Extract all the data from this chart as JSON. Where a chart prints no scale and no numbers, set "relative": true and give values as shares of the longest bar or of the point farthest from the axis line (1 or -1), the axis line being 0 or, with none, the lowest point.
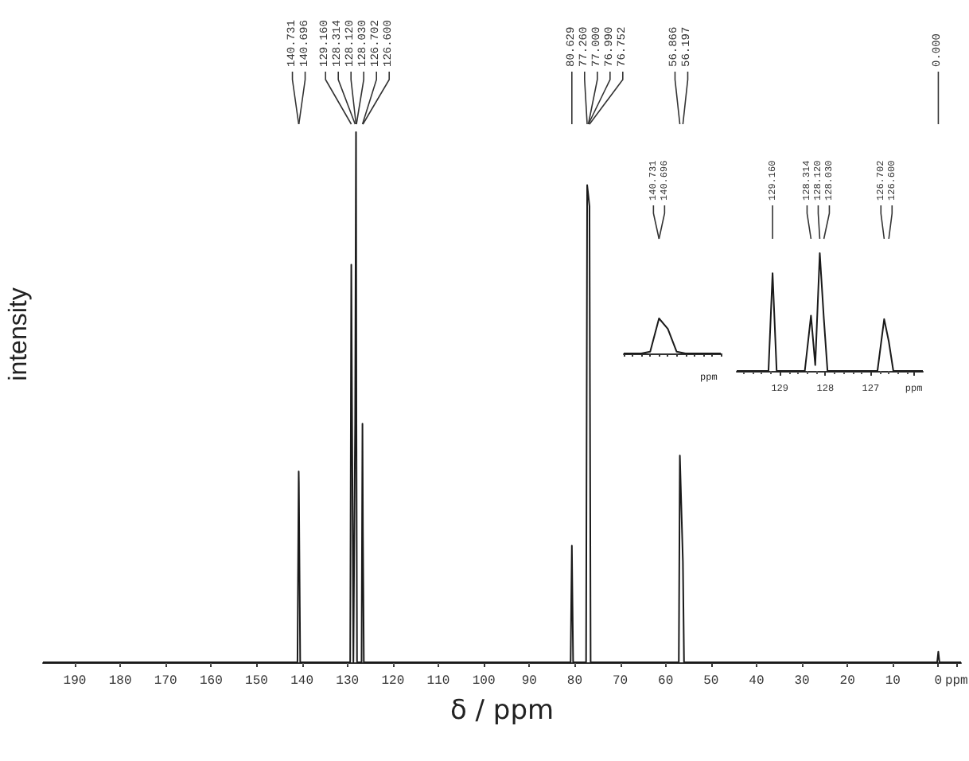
{
  "chart_data": [
    {
      "type": "line",
      "relative": true,
      "xlabel": "δ / ppm",
      "ylabel": "intensity",
      "xlim": [
        197,
        -5
      ],
      "xticks": [
        190,
        180,
        170,
        160,
        150,
        140,
        130,
        120,
        110,
        100,
        90,
        80,
        70,
        60,
        50,
        40,
        30,
        20,
        10,
        0,
        {
          "value": -4,
          "label": "ppm"
        }
      ],
      "series": [
        {
          "color": "#1a1a1a",
          "x": [
            197,
            141.0,
            140.731,
            140.696,
            140.4,
            129.4,
            129.16,
            128.7,
            128.314,
            128.12,
            128.03,
            127.9,
            126.9,
            126.702,
            126.6,
            126.4,
            80.9,
            80.629,
            80.35,
            77.5,
            77.26,
            77.0,
            76.99,
            76.752,
            76.5,
            57.1,
            56.866,
            56.197,
            55.95,
            0.25,
            0.0,
            -0.25,
            -5
          ],
          "values": [
            0,
            0,
            0.36,
            0.34,
            0,
            0,
            0.75,
            0,
            0.45,
            1.0,
            0.45,
            0,
            0,
            0.45,
            0.25,
            0,
            0,
            0.22,
            0,
            0,
            0.9,
            0.88,
            0.88,
            0.86,
            0,
            0,
            0.39,
            0.19,
            0,
            0,
            0.02,
            0,
            0
          ]
        }
      ],
      "annotations": [
        {
          "text": "140.731",
          "x": 140.731
        },
        {
          "text": "140.696",
          "x": 140.696
        },
        {
          "text": "129.160",
          "x": 129.16
        },
        {
          "text": "128.314",
          "x": 128.314
        },
        {
          "text": "128.120",
          "x": 128.12
        },
        {
          "text": "128.030",
          "x": 128.03
        },
        {
          "text": "126.702",
          "x": 126.702
        },
        {
          "text": "126.600",
          "x": 126.6
        },
        {
          "text": "80.629",
          "x": 80.629
        },
        {
          "text": "77.260",
          "x": 77.26
        },
        {
          "text": "77.000",
          "x": 77.0
        },
        {
          "text": "76.990",
          "x": 76.99
        },
        {
          "text": "76.752",
          "x": 76.752
        },
        {
          "text": "56.866",
          "x": 56.866
        },
        {
          "text": "56.197",
          "x": 56.197
        },
        {
          "text": "0.000",
          "x": 0.0
        }
      ]
    },
    {
      "type": "line",
      "relative": true,
      "xlabel": "ppm",
      "categories": [
        null,
        null,
        null,
        null,
        null,
        null,
        null,
        null,
        null,
        null,
        null,
        null
      ],
      "series": [
        {
          "color": "#1a1a1a",
          "values": [
            0,
            0,
            0,
            0.05,
            1.0,
            0.7,
            0.05,
            0,
            0,
            0,
            0,
            0
          ]
        }
      ],
      "annotations": [
        "140.731",
        "140.696"
      ]
    },
    {
      "type": "line",
      "relative": true,
      "xlim": [
        129.95,
        125.85
      ],
      "xticks": [
        129,
        128,
        127,
        {
          "value": 126.05,
          "label": "ppm"
        }
      ],
      "series": [
        {
          "color": "#1a1a1a",
          "x": [
            129.95,
            129.25,
            129.16,
            129.07,
            128.45,
            128.314,
            128.22,
            128.12,
            128.03,
            127.95,
            126.85,
            126.702,
            126.6,
            126.5,
            125.85
          ],
          "values": [
            0,
            0,
            0.83,
            0,
            0,
            0.47,
            0.05,
            1.0,
            0.44,
            0,
            0,
            0.44,
            0.25,
            0,
            0
          ]
        }
      ],
      "annotations": [
        {
          "text": "129.160",
          "x": 129.16
        },
        {
          "text": "128.314",
          "x": 128.314
        },
        {
          "text": "128.120",
          "x": 128.12
        },
        {
          "text": "128.030",
          "x": 128.03
        },
        {
          "text": "126.702",
          "x": 126.702
        },
        {
          "text": "126.600",
          "x": 126.6
        }
      ]
    }
  ]
}
